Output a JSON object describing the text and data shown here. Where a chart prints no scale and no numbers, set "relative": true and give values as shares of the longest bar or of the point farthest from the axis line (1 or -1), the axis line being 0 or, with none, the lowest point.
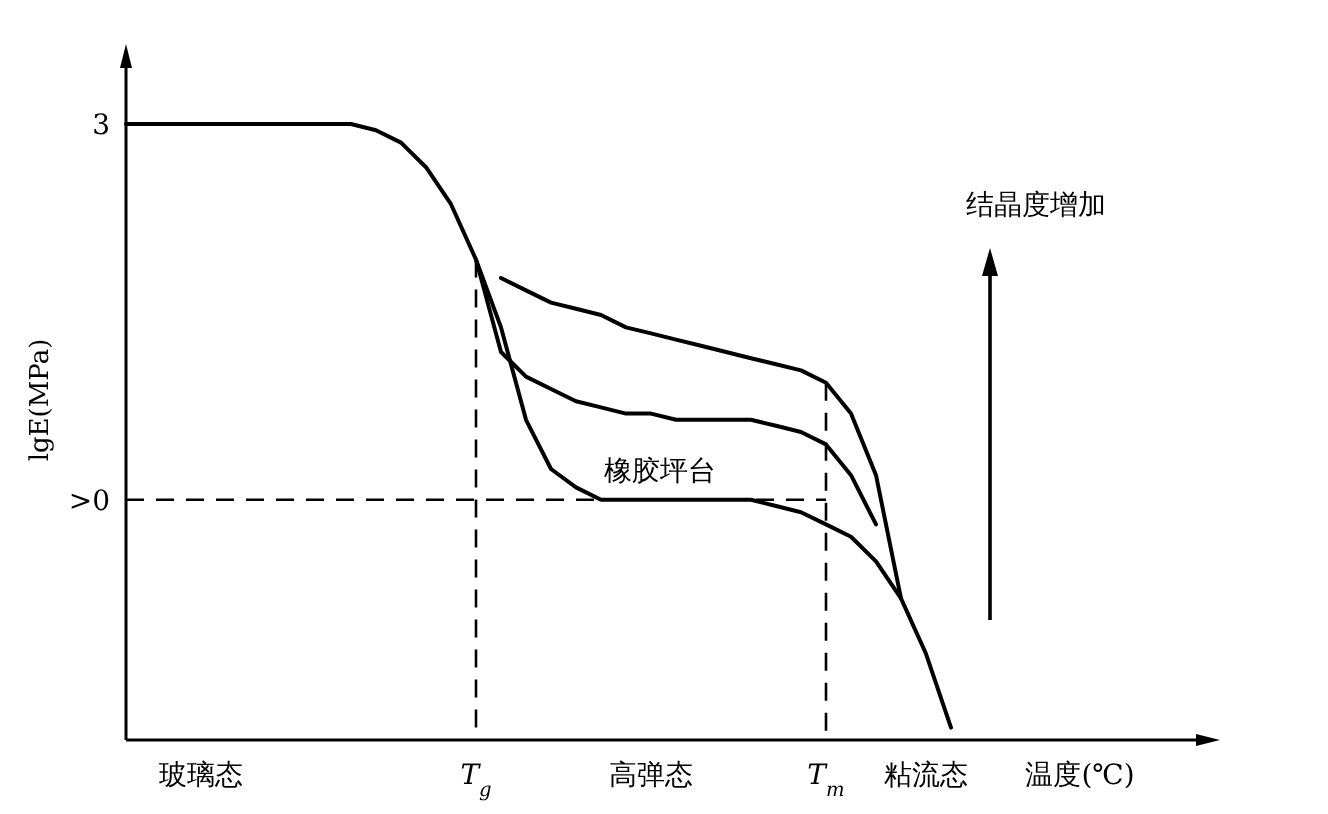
{
  "chart_data": {
    "type": "line",
    "relative": true,
    "xlabel": "温度(℃)",
    "ylabel": "lgE(MPa)",
    "categories": [
      null,
      null,
      null,
      "玻璃态",
      null,
      null,
      null,
      null,
      null,
      null,
      null,
      null,
      null,
      null,
      "*T*$_{g}$",
      null,
      null,
      null,
      null,
      null,
      null,
      "高弹态",
      null,
      null,
      null,
      null,
      null,
      null,
      "*T*$_{m}$",
      null,
      null,
      null,
      "粘流态",
      null,
      null
    ],
    "series": [
      {
        "color": "#000000",
        "values": [
          1,
          1,
          1,
          1,
          1,
          1,
          1,
          1,
          1,
          1,
          0.99,
          0.97,
          0.93,
          0.87,
          0.78,
          0.67,
          0.52,
          0.44,
          0.41,
          0.39,
          0.39,
          0.39,
          0.39,
          0.39,
          0.39,
          0.39,
          0.38,
          0.37,
          0.35,
          0.33,
          0.29,
          0.23,
          0.14,
          0.02,
          null
        ]
      },
      {
        "color": "#000000",
        "values": [
          null,
          null,
          null,
          null,
          null,
          null,
          null,
          null,
          null,
          null,
          null,
          null,
          null,
          null,
          0.78,
          0.63,
          0.59,
          0.57,
          0.55,
          0.54,
          0.53,
          0.53,
          0.52,
          0.52,
          0.52,
          0.52,
          0.51,
          0.5,
          0.48,
          0.43,
          0.35,
          null,
          null,
          null,
          null
        ]
      },
      {
        "color": "#000000",
        "values": [
          null,
          null,
          null,
          null,
          null,
          null,
          null,
          null,
          null,
          null,
          null,
          null,
          null,
          null,
          null,
          0.75,
          0.73,
          0.71,
          0.7,
          0.69,
          0.67,
          0.66,
          0.65,
          0.64,
          0.63,
          0.62,
          0.61,
          0.6,
          0.58,
          0.53,
          0.43,
          0.23,
          null,
          null,
          null
        ]
      }
    ],
    "ref_lines": [
      {
        "axis": "y",
        "value": 0.39,
        "label": ">0",
        "line_style": "dashed"
      },
      {
        "axis": "x",
        "value": "*T*$_{g}$",
        "line_style": "dashed"
      },
      {
        "axis": "x",
        "value": "*T*$_{m}$",
        "line_style": "dashed"
      }
    ],
    "annotations": [
      "3",
      "橡胶坪台",
      "结晶度增加"
    ]
  }
}
